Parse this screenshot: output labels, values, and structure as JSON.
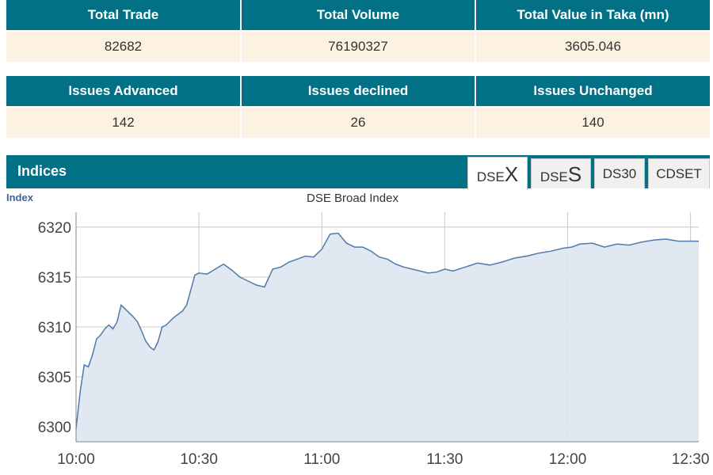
{
  "market_summary": {
    "headers": [
      "Total Trade",
      "Total Volume",
      "Total Value in Taka (mn)"
    ],
    "values": [
      "82682",
      "76190327",
      "3605.046"
    ]
  },
  "issues_summary": {
    "headers": [
      "Issues Advanced",
      "Issues declined",
      "Issues Unchanged"
    ],
    "values": [
      "142",
      "26",
      "140"
    ]
  },
  "indices_panel": {
    "title": "Indices",
    "tabs": [
      {
        "prefix": "DSE",
        "suffix": "X",
        "active": true
      },
      {
        "prefix": "DSE",
        "suffix": "S",
        "active": false
      },
      {
        "label": "DS30",
        "active": false
      },
      {
        "label": "CDSET",
        "active": false
      }
    ]
  },
  "chart_data": {
    "type": "area",
    "title": "DSE Broad Index",
    "ylabel": "Index",
    "xlabel": "",
    "x_tick_labels": [
      "10:00",
      "10:30",
      "11:00",
      "11:30",
      "12:00",
      "12:30"
    ],
    "y_tick_labels": [
      "6300",
      "6305",
      "6310",
      "6315",
      "6320"
    ],
    "ylim": [
      6298.5,
      6321.5
    ],
    "grid": true,
    "colors": {
      "line": "#4f7aaa",
      "fill": "#dde6f0",
      "grid": "#c8c8c8"
    },
    "series": [
      {
        "x": [
          "10:00",
          "10:01",
          "10:02",
          "10:03",
          "10:04",
          "10:05",
          "10:06",
          "10:07",
          "10:08",
          "10:09",
          "10:10",
          "10:11",
          "10:12",
          "10:13",
          "10:14",
          "10:15",
          "10:16",
          "10:17",
          "10:18",
          "10:19",
          "10:20",
          "10:21",
          "10:22",
          "10:23",
          "10:24",
          "10:25",
          "10:26",
          "10:27",
          "10:28",
          "10:29",
          "10:30",
          "10:32",
          "10:34",
          "10:36",
          "10:38",
          "10:40",
          "10:42",
          "10:44",
          "10:46",
          "10:48",
          "10:50",
          "10:52",
          "10:54",
          "10:56",
          "10:58",
          "11:00",
          "11:02",
          "11:04",
          "11:06",
          "11:08",
          "11:10",
          "11:12",
          "11:14",
          "11:16",
          "11:18",
          "11:20",
          "11:22",
          "11:24",
          "11:26",
          "11:28",
          "11:30",
          "11:32",
          "11:35",
          "11:38",
          "11:41",
          "11:44",
          "11:47",
          "11:50",
          "11:53",
          "11:56",
          "11:59",
          "12:01",
          "12:03",
          "12:06",
          "12:09",
          "12:12",
          "12:15",
          "12:18",
          "12:21",
          "12:24",
          "12:27",
          "12:30",
          "12:32"
        ],
        "y": [
          6299.8,
          6303.5,
          6306.2,
          6306.0,
          6307.2,
          6308.8,
          6309.2,
          6309.8,
          6310.2,
          6309.8,
          6310.5,
          6312.2,
          6311.8,
          6311.4,
          6311.0,
          6310.5,
          6309.6,
          6308.6,
          6308.0,
          6307.7,
          6308.5,
          6310.0,
          6310.2,
          6310.6,
          6311.0,
          6311.3,
          6311.6,
          6312.2,
          6313.7,
          6315.2,
          6315.4,
          6315.3,
          6315.8,
          6316.3,
          6315.7,
          6315.0,
          6314.6,
          6314.2,
          6314.0,
          6315.8,
          6316.0,
          6316.5,
          6316.8,
          6317.1,
          6317.0,
          6317.8,
          6319.3,
          6319.4,
          6318.4,
          6318.0,
          6318.0,
          6317.6,
          6317.0,
          6316.8,
          6316.3,
          6316.0,
          6315.8,
          6315.6,
          6315.4,
          6315.5,
          6315.8,
          6315.6,
          6316.0,
          6316.4,
          6316.2,
          6316.5,
          6316.9,
          6317.1,
          6317.4,
          6317.6,
          6317.9,
          6318.0,
          6318.3,
          6318.4,
          6318.0,
          6318.3,
          6318.2,
          6318.5,
          6318.7,
          6318.8,
          6318.6,
          6318.6,
          6318.6
        ]
      }
    ]
  }
}
